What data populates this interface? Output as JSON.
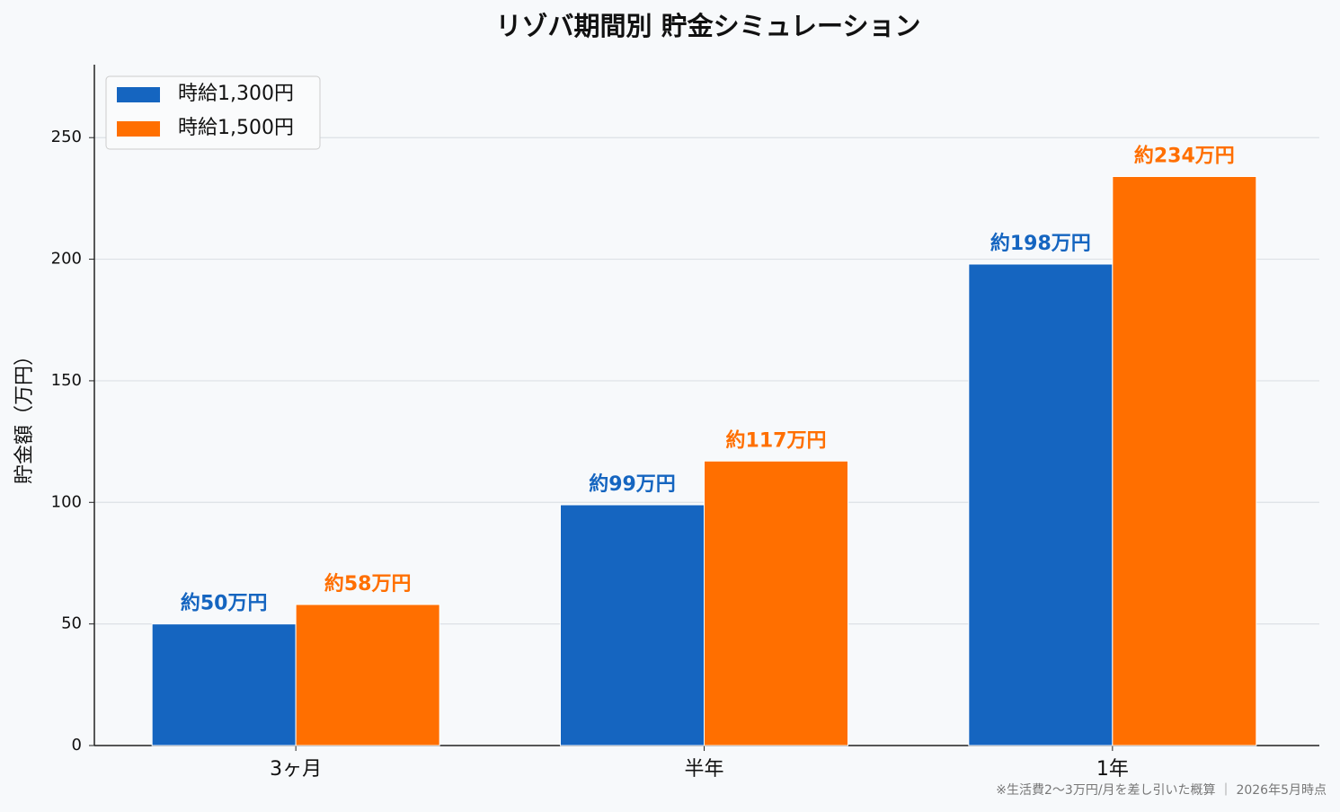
{
  "chart_data": {
    "type": "bar",
    "title": "リゾバ期間別 貯金シミュレーション",
    "y_label": "貯金額（万円）",
    "footnote": "※生活費2〜3万円/月を差し引いた概算 ｜ 2026年5月時点",
    "categories": [
      "3ヶ月",
      "半年",
      "1年"
    ],
    "series": [
      {
        "name": "時給1,300円",
        "color": "#1565c0",
        "values": [
          50,
          99,
          198
        ],
        "value_labels": [
          "約50万円",
          "約99万円",
          "約198万円"
        ]
      },
      {
        "name": "時給1,500円",
        "color": "#ff6f00",
        "values": [
          58,
          117,
          234
        ],
        "value_labels": [
          "約58万円",
          "約117万円",
          "約234万円"
        ]
      }
    ],
    "ylim": [
      0,
      280
    ],
    "yticks": [
      0,
      50,
      100,
      150,
      200,
      250
    ],
    "grid": true,
    "legend": "upper-left"
  }
}
